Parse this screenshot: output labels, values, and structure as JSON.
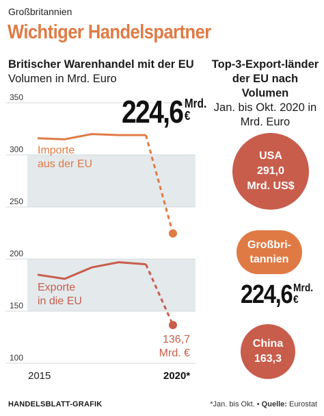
{
  "kicker": "Großbritannien",
  "headline": "Wichtiger Handelspartner",
  "chart": {
    "title_bold": "Britischer Warenhandel mit der EU",
    "title_normal": "Volumen in Mrd. Euro",
    "big_value": "224,6",
    "big_value_unit": "Mrd. €",
    "imports_label": [
      "Importe",
      "aus der EU"
    ],
    "exports_label": [
      "Exporte",
      "in die EU"
    ],
    "end_label": [
      "136,7",
      "Mrd. €"
    ]
  },
  "chart_data": {
    "type": "line",
    "x": [
      2015,
      2016,
      2017,
      2018,
      2019,
      2020
    ],
    "x_tick_labels": [
      "2015",
      "2020*"
    ],
    "series": [
      {
        "name": "Importe aus der EU",
        "values": [
          316,
          315,
          320,
          319,
          319,
          224.6
        ],
        "color": "#e07a45",
        "last_point_dashed": true
      },
      {
        "name": "Exporte in die EU",
        "values": [
          185,
          181,
          192,
          197,
          195,
          136.7
        ],
        "color": "#c85d4c",
        "last_point_dashed": true
      }
    ],
    "ylim": [
      110,
      350
    ],
    "yticks": [
      100,
      150,
      200,
      250,
      300,
      350
    ],
    "ytick_labels": [
      "100",
      "150",
      "200",
      "250",
      "300",
      "350"
    ],
    "grid_bands": true
  },
  "right_panel": {
    "title_bold": "Top-3-Export-länder der EU nach Volumen",
    "title_normal": "Jan. bis Okt. 2020 in Mrd. Euro",
    "usa": {
      "name": "USA",
      "value": "291,0",
      "unit": "Mrd. US$"
    },
    "gb": {
      "name_line1": "Großbri-",
      "name_line2": "tannien",
      "value": "224,6",
      "unit": "Mrd. €"
    },
    "china": {
      "name": "China",
      "value": "163,3"
    }
  },
  "footer": {
    "source_label": "HANDELSBLATT-GRAFIK",
    "note": "*Jan. bis Okt. •",
    "source_key": "Quelle:",
    "source_value": "Eurostat"
  },
  "colors": {
    "imports": "#e07a45",
    "exports": "#c85d4c",
    "band": "#e4e9ec",
    "headline": "#e07a45"
  }
}
